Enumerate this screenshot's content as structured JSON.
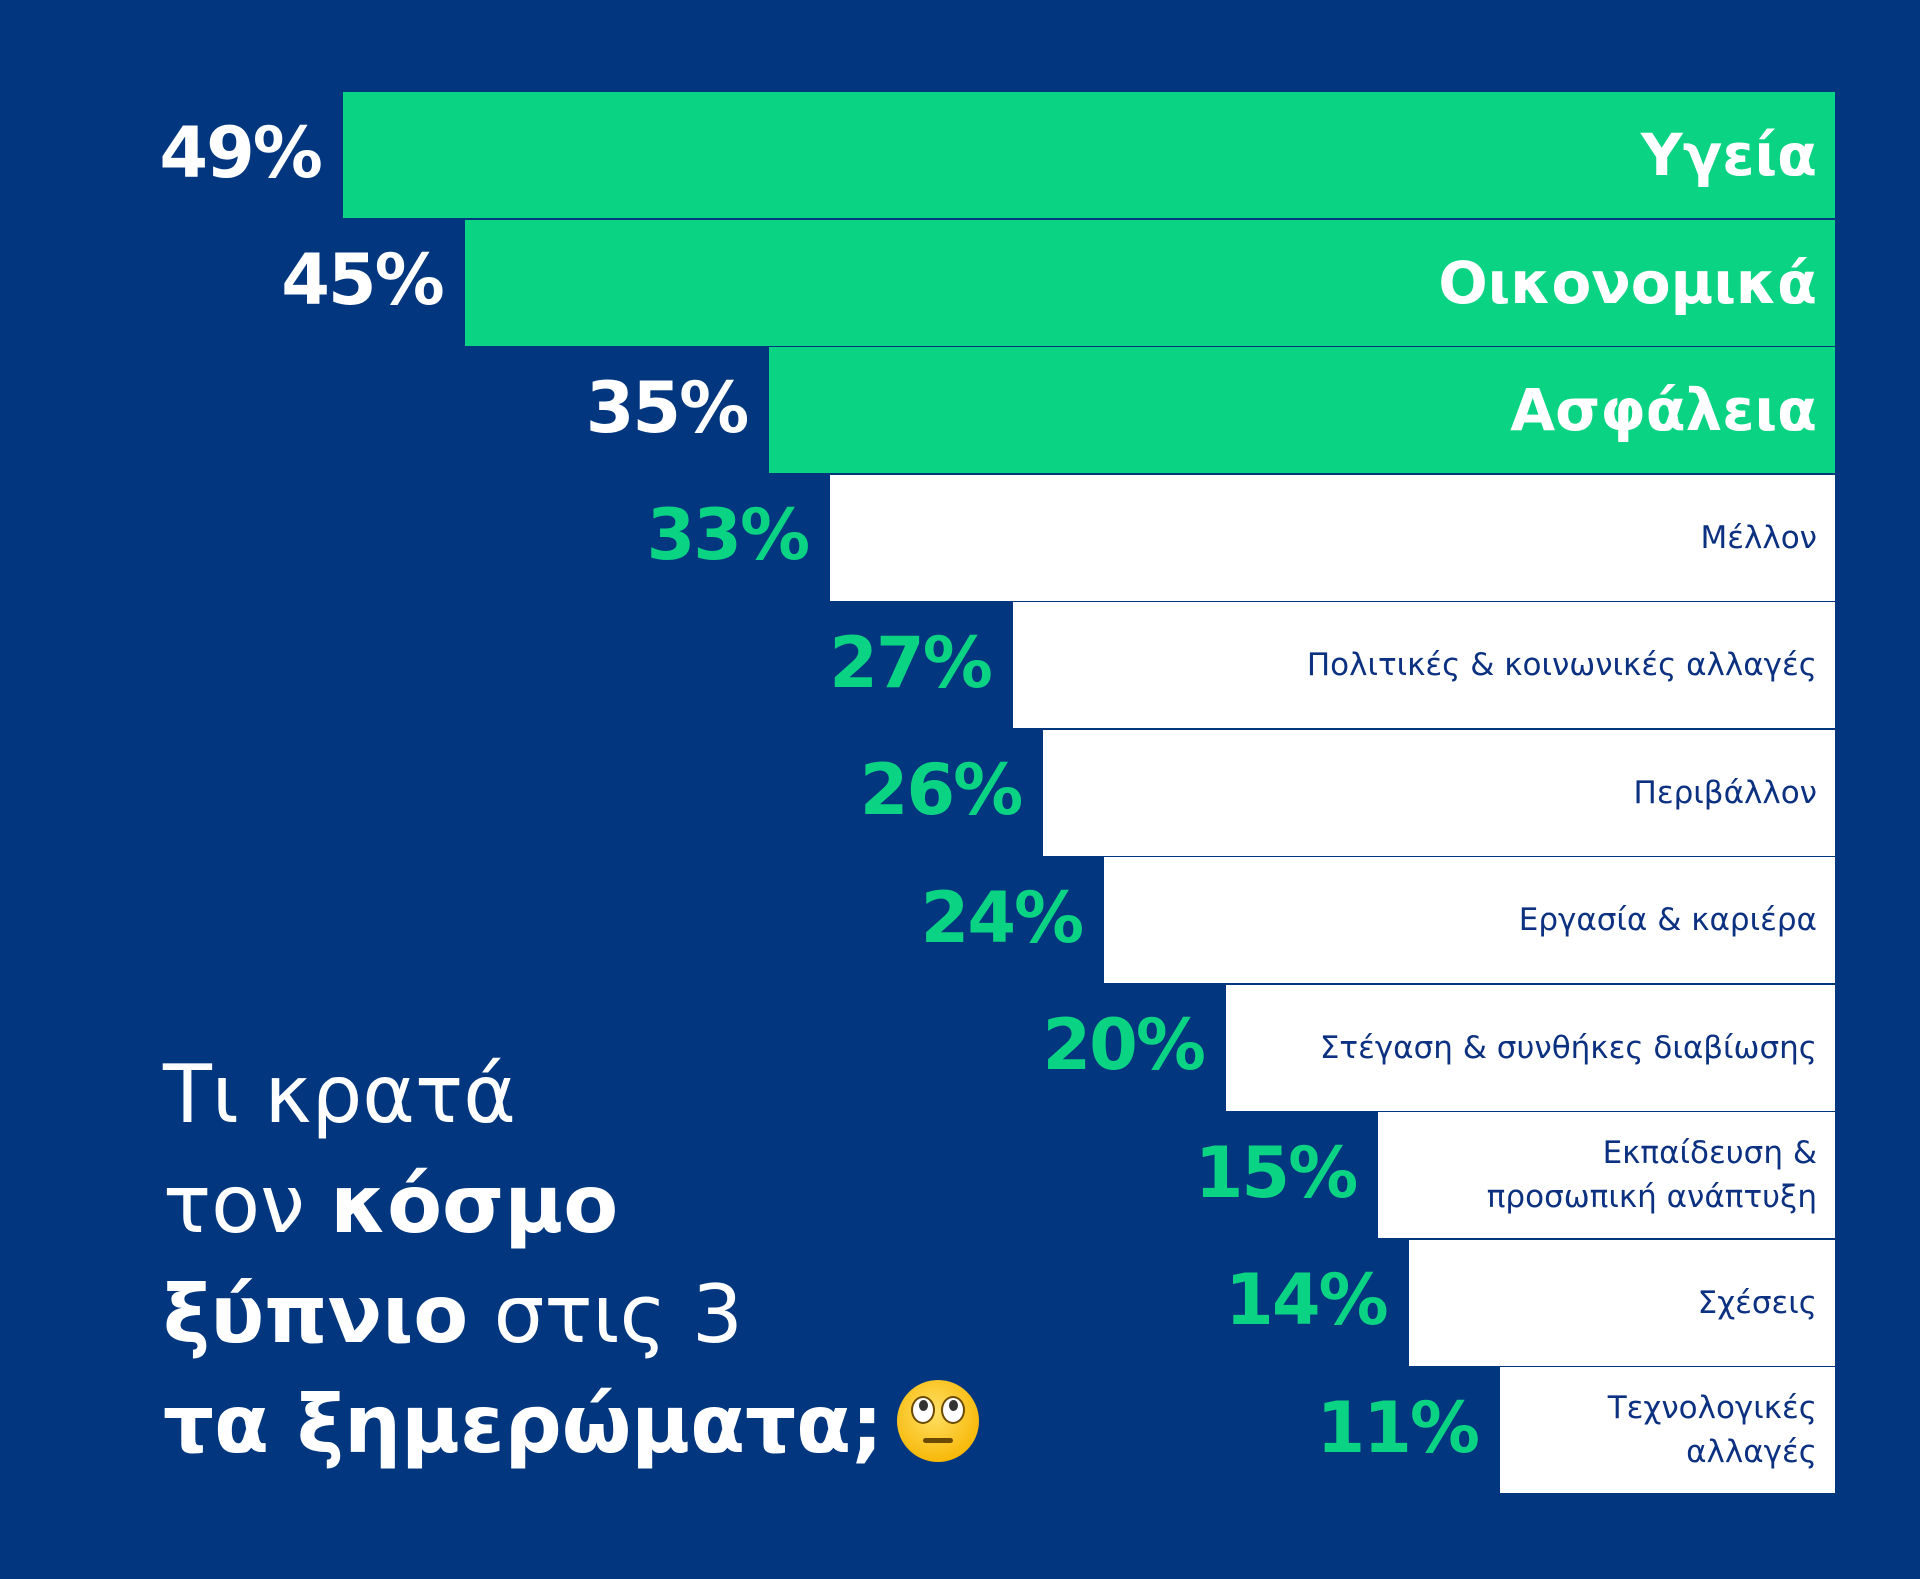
{
  "chart_data": {
    "type": "bar",
    "orientation": "horizontal",
    "categories": [
      "Υγεία",
      "Οικονομικά",
      "Ασφάλεια",
      "Μέλλον",
      "Πολιτικές & κοινωνικές αλλαγές",
      "Περιβάλλον",
      "Εργασία & καριέρα",
      "Στέγαση & συνθήκες διαβίωσης",
      "Εκπαίδευση & προσωπική ανάπτυξη",
      "Σχέσεις",
      "Τεχνολογικές αλλαγές"
    ],
    "values": [
      49,
      45,
      35,
      33,
      27,
      26,
      24,
      20,
      15,
      14,
      11
    ],
    "value_labels": [
      "49%",
      "45%",
      "35%",
      "33%",
      "27%",
      "26%",
      "24%",
      "20%",
      "15%",
      "14%",
      "11%"
    ],
    "highlight_top": 3,
    "colors": {
      "background": "#02377f",
      "highlight": "#0bd384",
      "other": "#ffffff",
      "label_dark": "#0c3180"
    },
    "title": {
      "line1": "Τι κρατά",
      "line2_normal": "τον ",
      "line2_bold": "κόσμο",
      "line3_bold": "ξύπνιο",
      "line3_normal": " στις 3",
      "line4_bold": "τα ξημερώματα;",
      "emoji_icon": "face-with-rolling-eyes-icon"
    }
  }
}
